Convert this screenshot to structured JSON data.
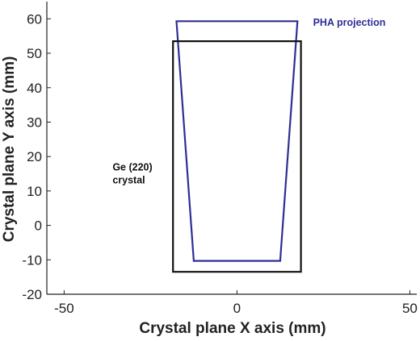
{
  "chart_data": {
    "type": "line",
    "title": "",
    "xlabel": "Crystal plane X axis (mm)",
    "ylabel": "Crystal plane Y axis (mm)",
    "xlim": [
      -55,
      52
    ],
    "ylim": [
      -20,
      65
    ],
    "xticks": [
      -50,
      0,
      50
    ],
    "yticks": [
      -20,
      -10,
      0,
      10,
      20,
      30,
      40,
      50,
      60
    ],
    "grid": false,
    "series": [
      {
        "name": "PHA projection",
        "color": "#2e2e96",
        "closed": true,
        "x": [
          -17.5,
          17.5,
          12.5,
          -12.5
        ],
        "y": [
          59.3,
          59.3,
          -10.3,
          -10.3
        ]
      },
      {
        "name": "Ge (220) crystal",
        "color": "#111111",
        "closed": true,
        "x": [
          -18.5,
          18.5,
          18.5,
          -18.5
        ],
        "y": [
          53.5,
          53.5,
          -13.5,
          -13.5
        ]
      }
    ],
    "annotations": [
      {
        "text": "PHA projection",
        "color": "#2e2e96",
        "x": 22,
        "y": 58
      },
      {
        "text": "Ge (220)",
        "color": "#111111",
        "x": -36,
        "y": 16
      },
      {
        "text": "crystal",
        "color": "#111111",
        "x": -36,
        "y": 12.2
      }
    ]
  }
}
